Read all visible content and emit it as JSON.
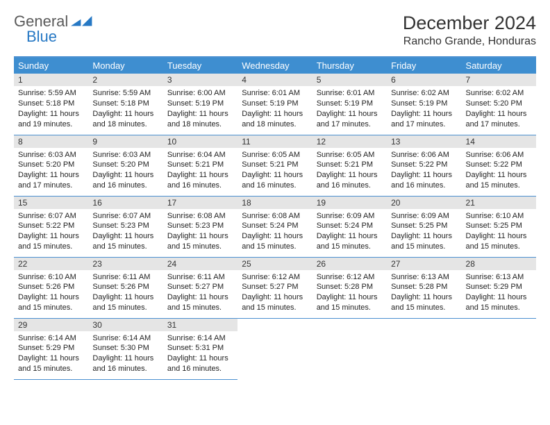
{
  "logo": {
    "text1": "General",
    "text2": "Blue"
  },
  "header": {
    "month": "December 2024",
    "location": "Rancho Grande, Honduras"
  },
  "weekdays": [
    "Sunday",
    "Monday",
    "Tuesday",
    "Wednesday",
    "Thursday",
    "Friday",
    "Saturday"
  ],
  "colors": {
    "header_bg": "#3e8ed0",
    "rule": "#4a8fd0",
    "daynum_bg": "#e5e5e5",
    "text": "#1a1a1a"
  },
  "weeks": [
    [
      {
        "n": "1",
        "sr": "5:59 AM",
        "ss": "5:18 PM",
        "dl": "11 hours and 19 minutes."
      },
      {
        "n": "2",
        "sr": "5:59 AM",
        "ss": "5:18 PM",
        "dl": "11 hours and 18 minutes."
      },
      {
        "n": "3",
        "sr": "6:00 AM",
        "ss": "5:19 PM",
        "dl": "11 hours and 18 minutes."
      },
      {
        "n": "4",
        "sr": "6:01 AM",
        "ss": "5:19 PM",
        "dl": "11 hours and 18 minutes."
      },
      {
        "n": "5",
        "sr": "6:01 AM",
        "ss": "5:19 PM",
        "dl": "11 hours and 17 minutes."
      },
      {
        "n": "6",
        "sr": "6:02 AM",
        "ss": "5:19 PM",
        "dl": "11 hours and 17 minutes."
      },
      {
        "n": "7",
        "sr": "6:02 AM",
        "ss": "5:20 PM",
        "dl": "11 hours and 17 minutes."
      }
    ],
    [
      {
        "n": "8",
        "sr": "6:03 AM",
        "ss": "5:20 PM",
        "dl": "11 hours and 17 minutes."
      },
      {
        "n": "9",
        "sr": "6:03 AM",
        "ss": "5:20 PM",
        "dl": "11 hours and 16 minutes."
      },
      {
        "n": "10",
        "sr": "6:04 AM",
        "ss": "5:21 PM",
        "dl": "11 hours and 16 minutes."
      },
      {
        "n": "11",
        "sr": "6:05 AM",
        "ss": "5:21 PM",
        "dl": "11 hours and 16 minutes."
      },
      {
        "n": "12",
        "sr": "6:05 AM",
        "ss": "5:21 PM",
        "dl": "11 hours and 16 minutes."
      },
      {
        "n": "13",
        "sr": "6:06 AM",
        "ss": "5:22 PM",
        "dl": "11 hours and 16 minutes."
      },
      {
        "n": "14",
        "sr": "6:06 AM",
        "ss": "5:22 PM",
        "dl": "11 hours and 15 minutes."
      }
    ],
    [
      {
        "n": "15",
        "sr": "6:07 AM",
        "ss": "5:22 PM",
        "dl": "11 hours and 15 minutes."
      },
      {
        "n": "16",
        "sr": "6:07 AM",
        "ss": "5:23 PM",
        "dl": "11 hours and 15 minutes."
      },
      {
        "n": "17",
        "sr": "6:08 AM",
        "ss": "5:23 PM",
        "dl": "11 hours and 15 minutes."
      },
      {
        "n": "18",
        "sr": "6:08 AM",
        "ss": "5:24 PM",
        "dl": "11 hours and 15 minutes."
      },
      {
        "n": "19",
        "sr": "6:09 AM",
        "ss": "5:24 PM",
        "dl": "11 hours and 15 minutes."
      },
      {
        "n": "20",
        "sr": "6:09 AM",
        "ss": "5:25 PM",
        "dl": "11 hours and 15 minutes."
      },
      {
        "n": "21",
        "sr": "6:10 AM",
        "ss": "5:25 PM",
        "dl": "11 hours and 15 minutes."
      }
    ],
    [
      {
        "n": "22",
        "sr": "6:10 AM",
        "ss": "5:26 PM",
        "dl": "11 hours and 15 minutes."
      },
      {
        "n": "23",
        "sr": "6:11 AM",
        "ss": "5:26 PM",
        "dl": "11 hours and 15 minutes."
      },
      {
        "n": "24",
        "sr": "6:11 AM",
        "ss": "5:27 PM",
        "dl": "11 hours and 15 minutes."
      },
      {
        "n": "25",
        "sr": "6:12 AM",
        "ss": "5:27 PM",
        "dl": "11 hours and 15 minutes."
      },
      {
        "n": "26",
        "sr": "6:12 AM",
        "ss": "5:28 PM",
        "dl": "11 hours and 15 minutes."
      },
      {
        "n": "27",
        "sr": "6:13 AM",
        "ss": "5:28 PM",
        "dl": "11 hours and 15 minutes."
      },
      {
        "n": "28",
        "sr": "6:13 AM",
        "ss": "5:29 PM",
        "dl": "11 hours and 15 minutes."
      }
    ],
    [
      {
        "n": "29",
        "sr": "6:14 AM",
        "ss": "5:29 PM",
        "dl": "11 hours and 15 minutes."
      },
      {
        "n": "30",
        "sr": "6:14 AM",
        "ss": "5:30 PM",
        "dl": "11 hours and 16 minutes."
      },
      {
        "n": "31",
        "sr": "6:14 AM",
        "ss": "5:31 PM",
        "dl": "11 hours and 16 minutes."
      },
      null,
      null,
      null,
      null
    ]
  ],
  "labels": {
    "sunrise": "Sunrise:",
    "sunset": "Sunset:",
    "daylight": "Daylight:"
  }
}
